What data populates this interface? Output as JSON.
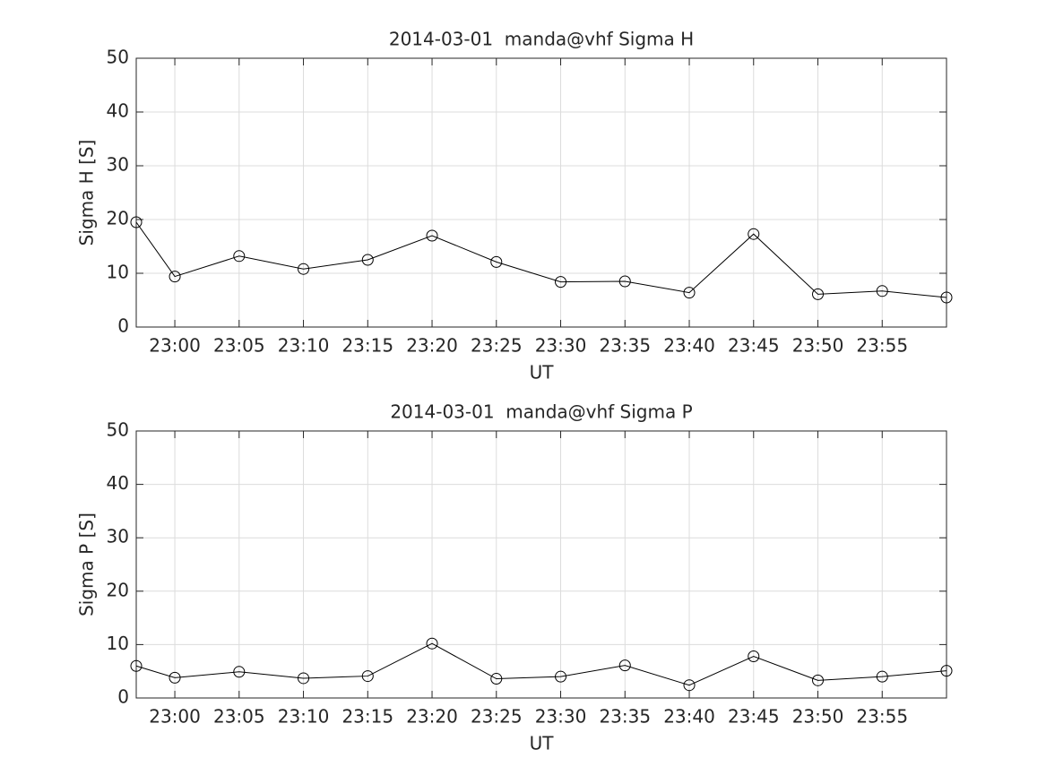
{
  "chart_data": [
    {
      "type": "line",
      "title": "2014-03-01  manda@vhf Sigma H",
      "x_label": "UT",
      "y_label": "Sigma H [S]",
      "x": [
        "22:57",
        "23:00",
        "23:05",
        "23:10",
        "23:15",
        "23:20",
        "23:25",
        "23:30",
        "23:35",
        "23:40",
        "23:45",
        "23:50",
        "23:55",
        "00:00"
      ],
      "series": [
        {
          "color": "#000000",
          "values": [
            19.5,
            9.4,
            13.2,
            10.8,
            12.5,
            17.0,
            12.1,
            8.4,
            8.5,
            6.4,
            17.3,
            6.1,
            6.7,
            5.5
          ]
        }
      ],
      "xlim": [
        "22:57",
        "00:00"
      ],
      "xticks": [
        "23:00",
        "23:05",
        "23:10",
        "23:15",
        "23:20",
        "23:25",
        "23:30",
        "23:35",
        "23:40",
        "23:45",
        "23:50",
        "23:55"
      ],
      "ylim": [
        0,
        50
      ],
      "yticks": [
        0,
        10,
        20,
        30,
        40,
        50
      ],
      "grid": true
    },
    {
      "type": "line",
      "title": "2014-03-01  manda@vhf Sigma P",
      "x_label": "UT",
      "y_label": "Sigma P [S]",
      "x": [
        "22:57",
        "23:00",
        "23:05",
        "23:10",
        "23:15",
        "23:20",
        "23:25",
        "23:30",
        "23:35",
        "23:40",
        "23:45",
        "23:50",
        "23:55",
        "00:00"
      ],
      "series": [
        {
          "color": "#000000",
          "values": [
            6.0,
            3.8,
            4.9,
            3.7,
            4.1,
            10.2,
            3.6,
            4.0,
            6.1,
            2.4,
            7.8,
            3.3,
            4.0,
            5.1
          ]
        }
      ],
      "xlim": [
        "22:57",
        "00:00"
      ],
      "xticks": [
        "23:00",
        "23:05",
        "23:10",
        "23:15",
        "23:20",
        "23:25",
        "23:30",
        "23:35",
        "23:40",
        "23:45",
        "23:50",
        "23:55"
      ],
      "ylim": [
        0,
        50
      ],
      "yticks": [
        0,
        10,
        20,
        30,
        40,
        50
      ],
      "grid": true
    }
  ]
}
